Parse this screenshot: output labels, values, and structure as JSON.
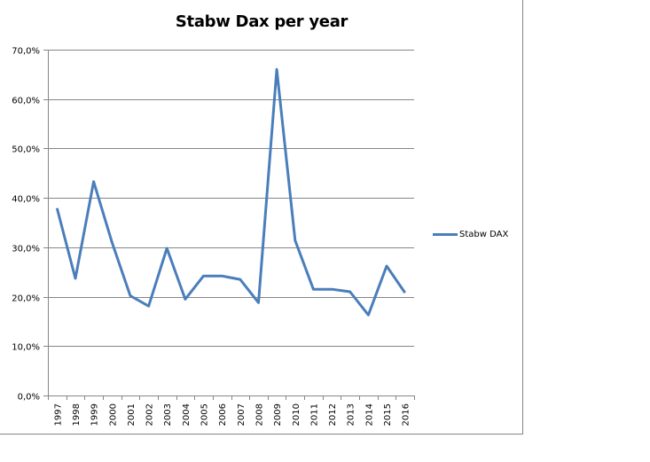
{
  "chart_data": {
    "type": "line",
    "title": "Stabw Dax per year",
    "xlabel": "",
    "ylabel": "",
    "categories": [
      "1997",
      "1998",
      "1999",
      "2000",
      "2001",
      "2002",
      "2003",
      "2004",
      "2005",
      "2006",
      "2007",
      "2008",
      "2009",
      "2010",
      "2011",
      "2012",
      "2013",
      "2014",
      "2015",
      "2016"
    ],
    "series": [
      {
        "name": "Stabw DAX",
        "color": "#4a7ebb",
        "values": [
          37.9,
          23.7,
          43.3,
          31.0,
          20.2,
          18.1,
          29.8,
          19.5,
          24.2,
          24.2,
          23.5,
          18.8,
          66.0,
          31.4,
          21.5,
          21.5,
          21.0,
          16.3,
          26.2,
          20.8
        ]
      }
    ],
    "ylim": [
      0,
      70
    ],
    "yticks": [
      "0,0%",
      "10,0%",
      "20,0%",
      "30,0%",
      "40,0%",
      "50,0%",
      "60,0%",
      "70,0%"
    ],
    "grid": true,
    "legend_position": "right"
  },
  "legend": {
    "label": "Stabw DAX"
  }
}
